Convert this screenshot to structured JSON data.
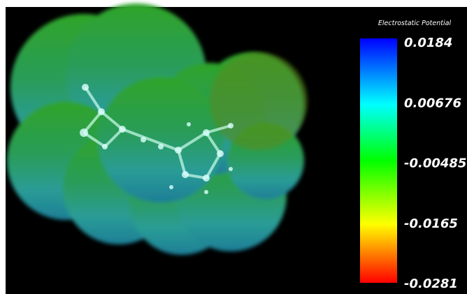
{
  "colorbar": {
    "title": "Electrostatic Potential",
    "ticks": [
      0.0184,
      0.00676,
      -0.00485,
      -0.0165,
      -0.0281
    ]
  }
}
